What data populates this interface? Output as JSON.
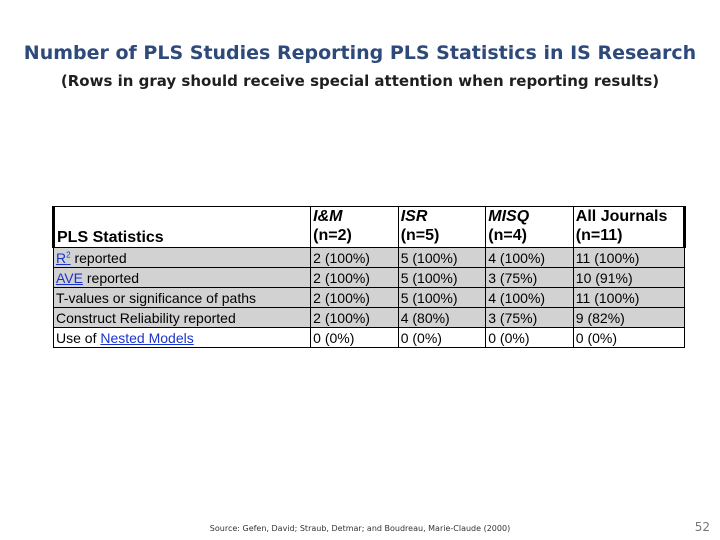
{
  "slide": {
    "title": "Number of PLS Studies Reporting PLS Statistics in IS Research",
    "subtitle": "(Rows in gray should receive special attention when reporting results)",
    "source": "Source: Gefen, David; Straub, Detmar; and Boudreau, Marie-Claude (2000)",
    "page_number": "52"
  },
  "table": {
    "headers": [
      {
        "label": "PLS Statistics",
        "n": ""
      },
      {
        "label": "I&M",
        "n": "(n=2)"
      },
      {
        "label": "ISR",
        "n": "(n=5)"
      },
      {
        "label": "MISQ",
        "n": "(n=4)"
      },
      {
        "label": "All Journals",
        "n": "(n=11)"
      }
    ],
    "rows": [
      {
        "pre": "",
        "link": "R",
        "sup": "2",
        "post": " reported",
        "values": [
          "2 (100%)",
          "5 (100%)",
          "4 (100%)",
          "11 (100%)"
        ],
        "gray": true
      },
      {
        "pre": "",
        "link": "AVE",
        "sup": "",
        "post": " reported",
        "values": [
          "2 (100%)",
          "5 (100%)",
          "3 (75%)",
          "10 (91%)"
        ],
        "gray": true
      },
      {
        "pre": "T-values or significance of paths",
        "link": "",
        "sup": "",
        "post": "",
        "values": [
          "2 (100%)",
          "5 (100%)",
          "4 (100%)",
          "11 (100%)"
        ],
        "gray": true
      },
      {
        "pre": "Construct Reliability reported",
        "link": "",
        "sup": "",
        "post": "",
        "values": [
          "2 (100%)",
          "4 (80%)",
          "3 (75%)",
          "9 (82%)"
        ],
        "gray": true
      },
      {
        "pre": "Use of ",
        "link": "Nested Models",
        "sup": "",
        "post": "",
        "values": [
          "0 (0%)",
          "0 (0%)",
          "0 (0%)",
          "0 (0%)"
        ],
        "gray": false
      }
    ]
  }
}
